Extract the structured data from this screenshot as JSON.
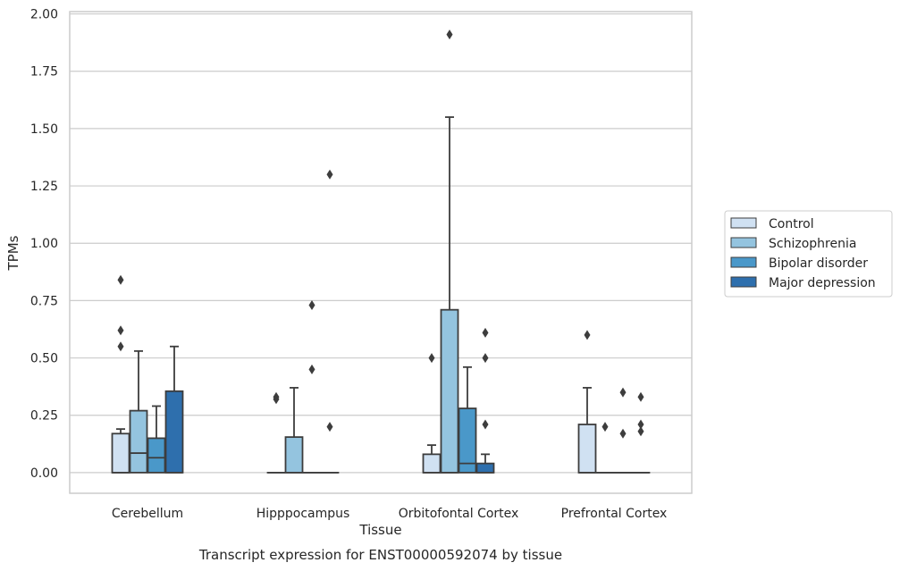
{
  "chart_data": {
    "type": "box",
    "title": "Transcript expression for ENST00000592074 by tissue",
    "xlabel": "Tissue",
    "ylabel": "TPMs",
    "ylim": [
      -0.09,
      2.01
    ],
    "yticks": [
      "0.00",
      "0.25",
      "0.50",
      "0.75",
      "1.00",
      "1.25",
      "1.50",
      "1.75",
      "2.00"
    ],
    "grid": true,
    "legend_position": "right",
    "categories": [
      "Cerebellum",
      "Hipppocampus",
      "Orbitofontal Cortex",
      "Prefrontal Cortex"
    ],
    "series": [
      {
        "name": "Control",
        "color": "#d0e1f2",
        "boxes": [
          {
            "min": 0,
            "q1": 0,
            "median": 0,
            "q3": 0.17,
            "max": 0.19,
            "outliers": [
              0.84,
              0.62,
              0.55
            ]
          },
          {
            "min": 0,
            "q1": 0,
            "median": 0,
            "q3": 0,
            "max": 0,
            "outliers": [
              0.33,
              0.32
            ]
          },
          {
            "min": 0,
            "q1": 0,
            "median": 0,
            "q3": 0.08,
            "max": 0.12,
            "outliers": [
              0.5
            ]
          },
          {
            "min": 0,
            "q1": 0,
            "median": 0,
            "q3": 0.21,
            "max": 0.37,
            "outliers": [
              0.6
            ]
          }
        ]
      },
      {
        "name": "Schizophrenia",
        "color": "#94c4df",
        "boxes": [
          {
            "min": 0,
            "q1": 0,
            "median": 0.085,
            "q3": 0.27,
            "max": 0.53,
            "outliers": []
          },
          {
            "min": 0,
            "q1": 0,
            "median": 0,
            "q3": 0.155,
            "max": 0.37,
            "outliers": []
          },
          {
            "min": 0,
            "q1": 0,
            "median": 0,
            "q3": 0.71,
            "max": 1.55,
            "outliers": [
              1.91
            ]
          },
          {
            "min": 0,
            "q1": 0,
            "median": 0,
            "q3": 0,
            "max": 0,
            "outliers": [
              0.2
            ]
          }
        ]
      },
      {
        "name": "Bipolar disorder",
        "color": "#4a98c9",
        "boxes": [
          {
            "min": 0,
            "q1": 0,
            "median": 0.065,
            "q3": 0.15,
            "max": 0.29,
            "outliers": []
          },
          {
            "min": 0,
            "q1": 0,
            "median": 0,
            "q3": 0,
            "max": 0,
            "outliers": [
              0.73,
              0.45
            ]
          },
          {
            "min": 0,
            "q1": 0,
            "median": 0.04,
            "q3": 0.28,
            "max": 0.46,
            "outliers": []
          },
          {
            "min": 0,
            "q1": 0,
            "median": 0,
            "q3": 0,
            "max": 0,
            "outliers": [
              0.35,
              0.17
            ]
          }
        ]
      },
      {
        "name": "Major depression",
        "color": "#2e6fad",
        "boxes": [
          {
            "min": 0,
            "q1": 0,
            "median": 0,
            "q3": 0.355,
            "max": 0.55,
            "outliers": []
          },
          {
            "min": 0,
            "q1": 0,
            "median": 0,
            "q3": 0,
            "max": 0,
            "outliers": [
              1.3,
              0.2
            ]
          },
          {
            "min": 0,
            "q1": 0,
            "median": 0,
            "q3": 0.04,
            "max": 0.08,
            "outliers": [
              0.61,
              0.5,
              0.21
            ]
          },
          {
            "min": 0,
            "q1": 0,
            "median": 0,
            "q3": 0,
            "max": 0,
            "outliers": [
              0.33,
              0.21,
              0.18
            ]
          }
        ]
      }
    ]
  }
}
